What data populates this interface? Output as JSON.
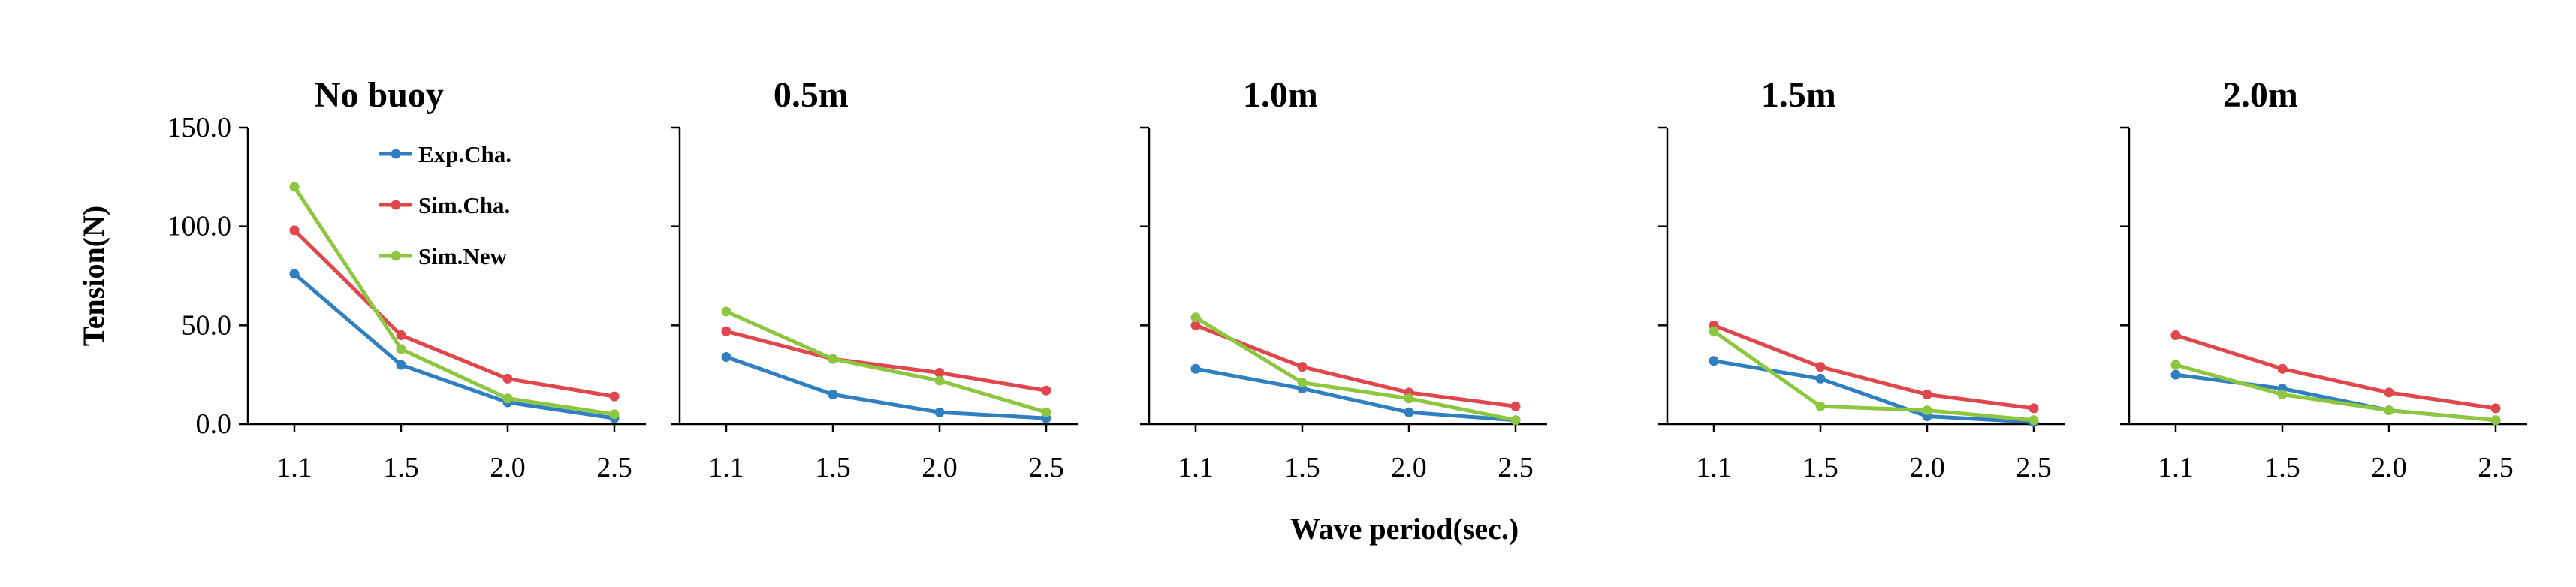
{
  "chart_data": {
    "type": "line",
    "xlabel": "Wave period(sec.)",
    "ylabel": "Tension(N)",
    "categories": [
      "1.1",
      "1.5",
      "2.0",
      "2.5"
    ],
    "y_ticks": [
      "0.0",
      "50.0",
      "100.0",
      "150.0"
    ],
    "ylim": [
      0,
      150
    ],
    "legend": {
      "location": "top-right of first panel",
      "entries": [
        "Exp.Cha.",
        "Sim.Cha.",
        "Sim.New"
      ]
    },
    "colors": {
      "Exp.Cha.": "#2f7fc1",
      "Sim.Cha.": "#e0474c",
      "Sim.New": "#8dc63f"
    },
    "panels": [
      {
        "title": "No buoy",
        "series": [
          {
            "name": "Exp.Cha.",
            "values": [
              76,
              30,
              11,
              3
            ]
          },
          {
            "name": "Sim.Cha.",
            "values": [
              98,
              45,
              23,
              14
            ]
          },
          {
            "name": "Sim.New",
            "values": [
              120,
              38,
              13,
              5
            ]
          }
        ]
      },
      {
        "title": "0.5m",
        "series": [
          {
            "name": "Exp.Cha.",
            "values": [
              34,
              15,
              6,
              3
            ]
          },
          {
            "name": "Sim.Cha.",
            "values": [
              47,
              33,
              26,
              17
            ]
          },
          {
            "name": "Sim.New",
            "values": [
              57,
              33,
              22,
              6
            ]
          }
        ]
      },
      {
        "title": "1.0m",
        "series": [
          {
            "name": "Exp.Cha.",
            "values": [
              28,
              18,
              6,
              2
            ]
          },
          {
            "name": "Sim.Cha.",
            "values": [
              50,
              29,
              16,
              9
            ]
          },
          {
            "name": "Sim.New",
            "values": [
              54,
              21,
              13,
              2
            ]
          }
        ]
      },
      {
        "title": "1.5m",
        "series": [
          {
            "name": "Exp.Cha.",
            "values": [
              32,
              23,
              4,
              1
            ]
          },
          {
            "name": "Sim.Cha.",
            "values": [
              50,
              29,
              15,
              8
            ]
          },
          {
            "name": "Sim.New",
            "values": [
              47,
              9,
              7,
              2
            ]
          }
        ]
      },
      {
        "title": "2.0m",
        "series": [
          {
            "name": "Exp.Cha.",
            "values": [
              25,
              18,
              7,
              2
            ]
          },
          {
            "name": "Sim.Cha.",
            "values": [
              45,
              28,
              16,
              8
            ]
          },
          {
            "name": "Sim.New",
            "values": [
              30,
              15,
              7,
              2
            ]
          }
        ]
      }
    ]
  }
}
